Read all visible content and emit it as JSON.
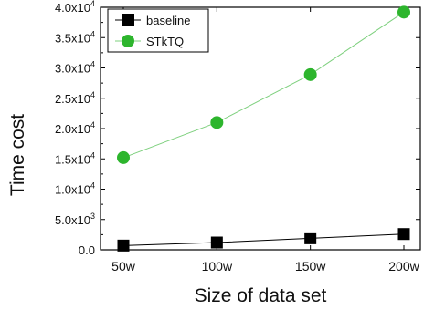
{
  "chart_data": {
    "type": "line",
    "xlabel": "Size of data set",
    "ylabel": "Time cost",
    "categories": [
      "50w",
      "100w",
      "150w",
      "200w"
    ],
    "ylim": [
      0,
      40000
    ],
    "yticks": [
      0,
      5000,
      10000,
      15000,
      20000,
      25000,
      30000,
      35000,
      40000
    ],
    "ytick_labels": [
      {
        "mant": "0.0",
        "exp": ""
      },
      {
        "mant": "5.0x10",
        "exp": "3"
      },
      {
        "mant": "1.0x10",
        "exp": "4"
      },
      {
        "mant": "1.5x10",
        "exp": "4"
      },
      {
        "mant": "2.0x10",
        "exp": "4"
      },
      {
        "mant": "2.5x10",
        "exp": "4"
      },
      {
        "mant": "3.0x10",
        "exp": "4"
      },
      {
        "mant": "3.5x10",
        "exp": "4"
      },
      {
        "mant": "4.0x10",
        "exp": "4"
      }
    ],
    "legend_position": "top-left",
    "grid": false,
    "series": [
      {
        "name": "baseline",
        "marker": "square",
        "color": "#000000",
        "line_color": "#000000",
        "values": [
          700,
          1200,
          1900,
          2600
        ]
      },
      {
        "name": "STkTQ",
        "marker": "circle",
        "color": "#2db52d",
        "line_color": "#7ed07e",
        "values": [
          15200,
          21000,
          28900,
          39200
        ]
      }
    ]
  }
}
